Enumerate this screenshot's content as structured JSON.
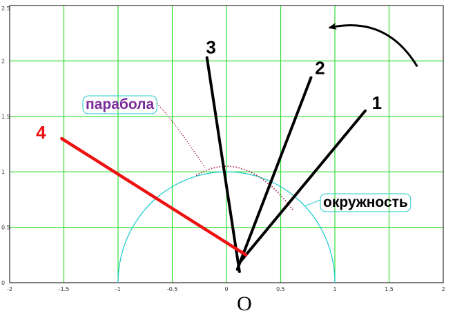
{
  "chart_data": {
    "type": "line",
    "xlim": [
      -2,
      2
    ],
    "ylim": [
      0,
      2.5
    ],
    "grid": true,
    "x_ticks": [
      "-2",
      "-1.5",
      "-1",
      "-0.5",
      "0",
      "0.5",
      "1",
      "1.5",
      "2"
    ],
    "y_ticks": [
      "0",
      "0.5",
      "1",
      "1.5",
      "2",
      "2.5"
    ],
    "colors": {
      "grid": "#33dd33",
      "circle": "#22cccc",
      "parabola": "#aa2244",
      "segments": "#000000",
      "segment_4": "#ee1111",
      "parabola_label": "#7a2a9a",
      "circle_label": "#000000",
      "arrow": "#000000"
    },
    "circle": {
      "center": [
        0,
        0
      ],
      "radius": 1
    },
    "parabola": {
      "vertex": [
        0,
        1.05
      ],
      "a": -1.05,
      "x_range": [
        -0.28,
        0.62
      ]
    },
    "segments": [
      {
        "label": "1",
        "x": [
          0.12,
          1.28
        ],
        "y": [
          0.18,
          1.55
        ]
      },
      {
        "label": "2",
        "x": [
          0.1,
          0.78
        ],
        "y": [
          0.12,
          1.85
        ]
      },
      {
        "label": "3",
        "x": [
          0.12,
          -0.18
        ],
        "y": [
          0.1,
          2.03
        ]
      },
      {
        "label": "4",
        "x": [
          0.18,
          -1.52
        ],
        "y": [
          0.25,
          1.3
        ]
      }
    ],
    "annotations": {
      "parabola_label": "парабола",
      "circle_label": "окружность",
      "origin_label": "O"
    },
    "rotation_arrow": {
      "from": [
        1.76,
        1.95
      ],
      "to": [
        0.95,
        2.3
      ]
    }
  }
}
